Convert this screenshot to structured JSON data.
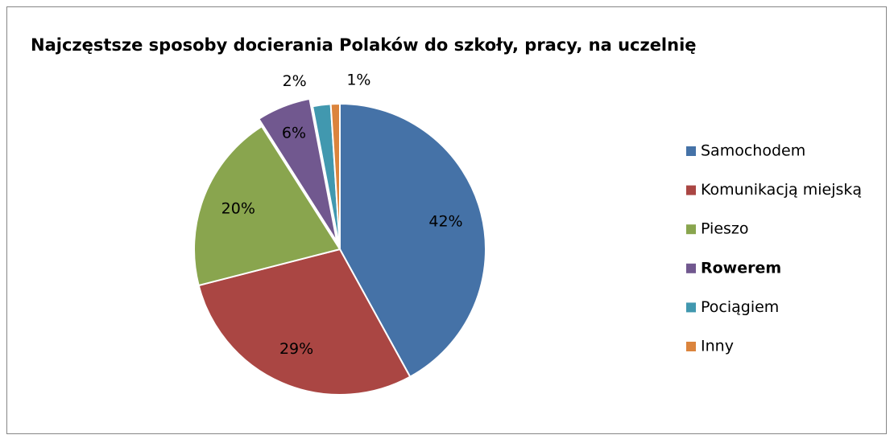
{
  "chart_data": {
    "type": "pie",
    "title": "Najczęstsze sposoby docierania Polaków do szkoły, pracy, na uczelnię",
    "categories": [
      "Samochodem",
      "Komunikacją miejską",
      "Pieszo",
      "Rowerem",
      "Pociągiem",
      "Inny"
    ],
    "values": [
      42,
      29,
      20,
      6,
      2,
      1
    ],
    "value_labels": [
      "42%",
      "29%",
      "20%",
      "6%",
      "2%",
      "1%"
    ],
    "colors": [
      "#4572a7",
      "#aa4643",
      "#89a54e",
      "#71588f",
      "#4198af",
      "#db843d"
    ],
    "highlight": "Rowerem",
    "legend": "right"
  }
}
